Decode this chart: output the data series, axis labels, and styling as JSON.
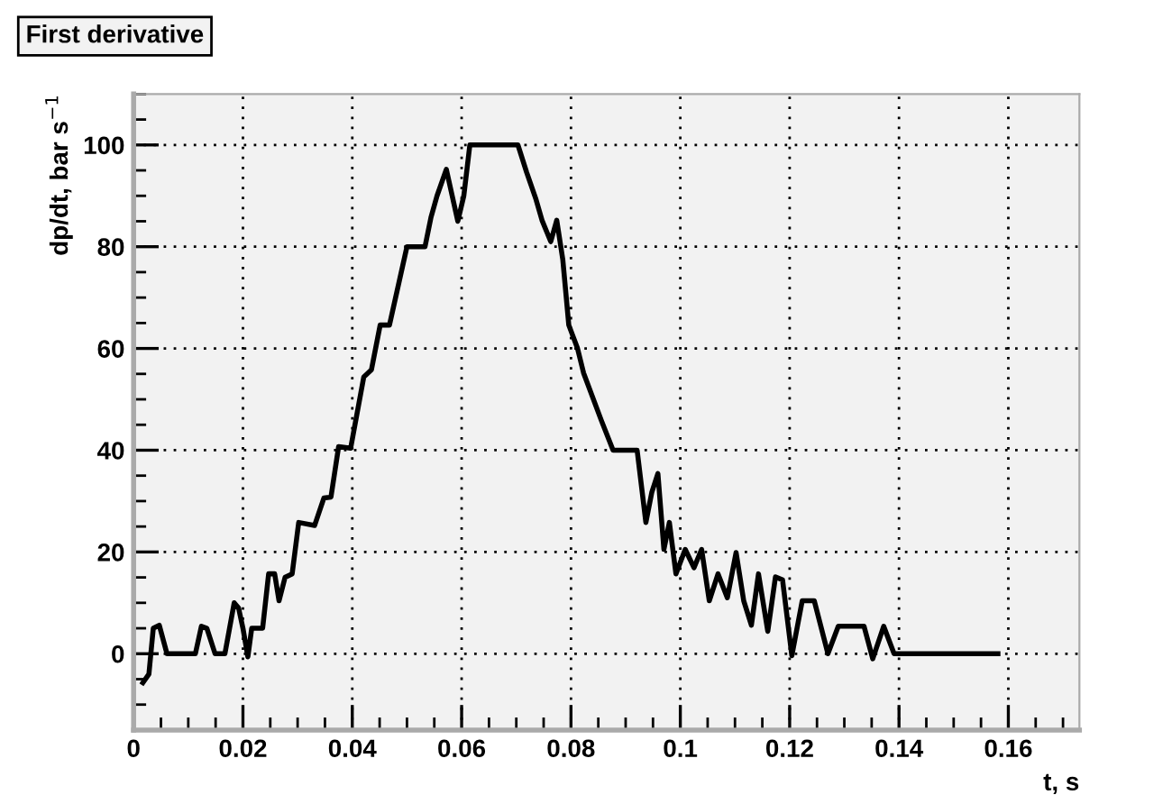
{
  "chart_data": {
    "type": "line",
    "title": "First derivative",
    "xlabel": "t, s",
    "ylabel": "dp/dt, bar s$^{−1}$",
    "x": [
      0.0017,
      0.0028,
      0.0036,
      0.0047,
      0.0061,
      0.0113,
      0.0124,
      0.0134,
      0.0149,
      0.0167,
      0.0184,
      0.0192,
      0.02,
      0.0209,
      0.0216,
      0.0236,
      0.0247,
      0.0258,
      0.0266,
      0.0277,
      0.029,
      0.0302,
      0.0331,
      0.0348,
      0.0361,
      0.0375,
      0.0397,
      0.0421,
      0.0435,
      0.0451,
      0.0468,
      0.05,
      0.0533,
      0.0544,
      0.0555,
      0.0572,
      0.0593,
      0.0604,
      0.0615,
      0.0703,
      0.0719,
      0.0736,
      0.0747,
      0.0763,
      0.0774,
      0.0785,
      0.0796,
      0.0812,
      0.0823,
      0.0855,
      0.0877,
      0.0921,
      0.0937,
      0.0948,
      0.0959,
      0.097,
      0.098,
      0.0992,
      0.1009,
      0.1025,
      0.1039,
      0.1053,
      0.1069,
      0.1086,
      0.1102,
      0.1116,
      0.113,
      0.1143,
      0.116,
      0.1174,
      0.1187,
      0.1204,
      0.1223,
      0.1245,
      0.127,
      0.1289,
      0.1336,
      0.1352,
      0.1372,
      0.1391,
      0.1581
    ],
    "series": [
      {
        "color": "#000000",
        "values": [
          -5.7,
          -4,
          5,
          5.6,
          0,
          0,
          5.4,
          5,
          0,
          0,
          10,
          9,
          5,
          -0.6,
          5,
          5,
          15.7,
          15.7,
          10.4,
          15,
          15.7,
          25.8,
          25.2,
          30.6,
          30.8,
          40.7,
          40.4,
          54.4,
          55.8,
          64.6,
          64.6,
          80,
          80,
          85.8,
          90,
          95.2,
          85,
          90,
          100,
          100,
          94.6,
          89.3,
          85.2,
          81,
          85.2,
          77.5,
          64.6,
          60,
          55.2,
          46,
          40,
          40,
          25.8,
          31.8,
          35.4,
          20.5,
          25.8,
          15.7,
          20.5,
          16.9,
          20.5,
          10.4,
          15.7,
          11,
          19.9,
          10.4,
          5.6,
          15.7,
          4.4,
          15.1,
          14.5,
          -0.4,
          10.4,
          10.4,
          0,
          5.4,
          5.4,
          -1,
          5.4,
          0,
          0
        ]
      }
    ],
    "xlim": [
      0,
      0.173
    ],
    "ylim": [
      -15,
      110
    ],
    "xticks": [
      0,
      0.02,
      0.04,
      0.06,
      0.08,
      0.1,
      0.12,
      0.14,
      0.16
    ],
    "yticks": [
      0,
      20,
      40,
      60,
      80,
      100
    ],
    "grid": true,
    "marker": "none",
    "line_style": "solid"
  }
}
